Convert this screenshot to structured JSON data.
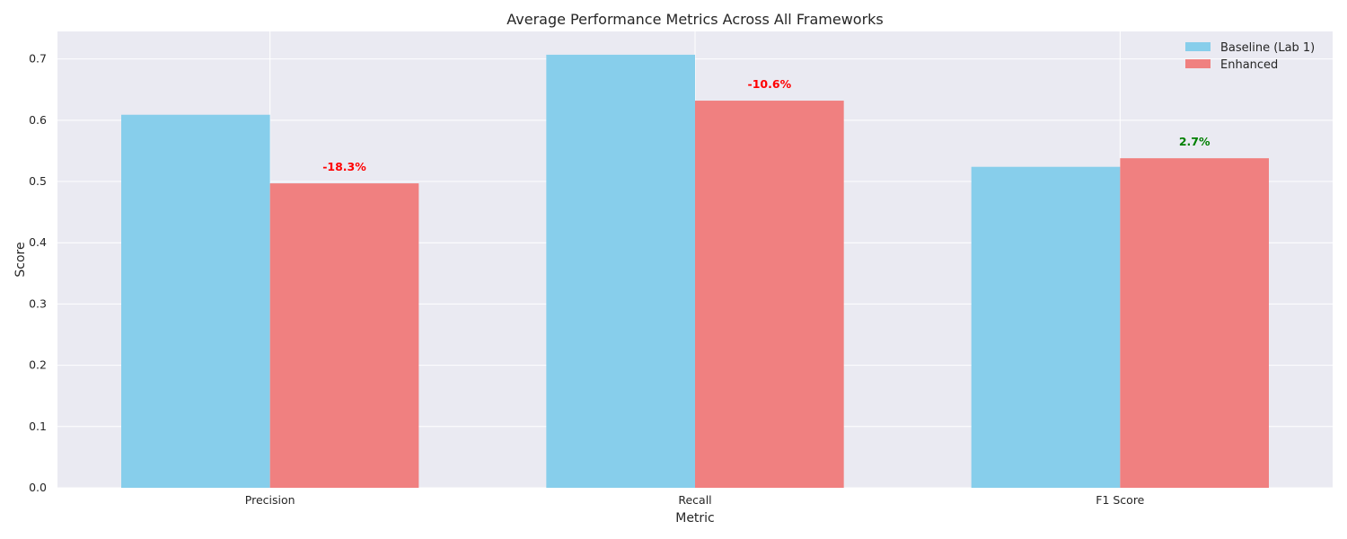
{
  "chart_data": {
    "type": "bar",
    "title": "Average Performance Metrics Across All Frameworks",
    "xlabel": "Metric",
    "ylabel": "Score",
    "categories": [
      "Precision",
      "Recall",
      "F1 Score"
    ],
    "series": [
      {
        "name": "Baseline (Lab 1)",
        "color": "#87ceeb",
        "values": [
          0.609,
          0.707,
          0.524
        ]
      },
      {
        "name": "Enhanced",
        "color": "#f08080",
        "values": [
          0.497,
          0.632,
          0.538
        ]
      }
    ],
    "annotations": [
      {
        "category": "Precision",
        "series": "Enhanced",
        "text": "-18.3%",
        "color": "#ff0000"
      },
      {
        "category": "Recall",
        "series": "Enhanced",
        "text": "-10.6%",
        "color": "#ff0000"
      },
      {
        "category": "F1 Score",
        "series": "Enhanced",
        "text": "2.7%",
        "color": "#008000"
      }
    ],
    "ylim": [
      0,
      0.745
    ],
    "yticks": [
      "0.0",
      "0.1",
      "0.2",
      "0.3",
      "0.4",
      "0.5",
      "0.6",
      "0.7"
    ],
    "grid": true,
    "legend_position": "top-right",
    "background_color": "#eaeaf2",
    "grid_color": "#ffffff"
  }
}
